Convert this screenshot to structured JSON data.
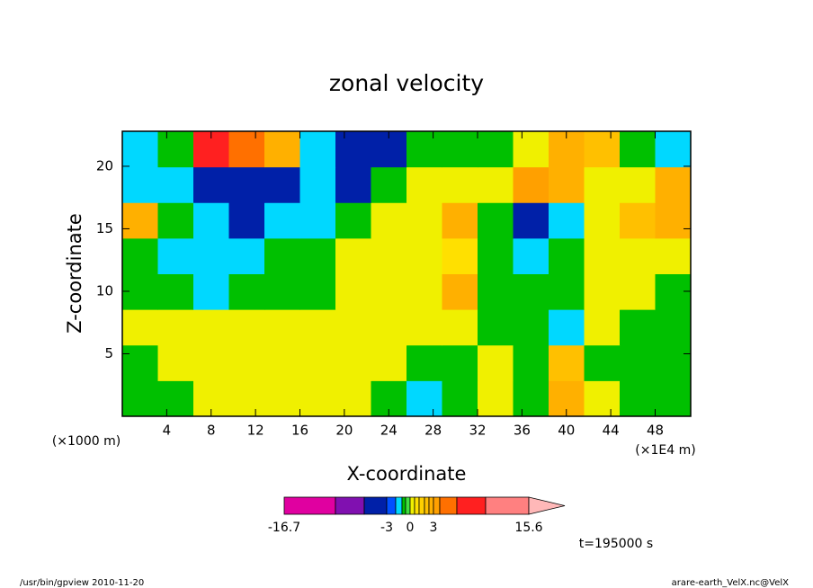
{
  "chart_data": {
    "type": "contourf",
    "title": "zonal velocity",
    "xlabel": "X-coordinate",
    "ylabel": "Z-coordinate",
    "xunit": "(×1000 m)",
    "xunit2": "(×1E4 m)",
    "time_label": "t=195000 s",
    "footer_left": "/usr/bin/gpview  2010-11-20",
    "footer_right": "arare-earth_VelX.nc@VelX",
    "xlim": [
      0,
      51.2
    ],
    "ylim": [
      0,
      22.8
    ],
    "xticks": [
      4,
      8,
      12,
      16,
      20,
      24,
      28,
      32,
      36,
      40,
      44,
      48
    ],
    "yticks": [
      5,
      10,
      15,
      20
    ],
    "xbins": [
      0,
      3.2,
      6.4,
      9.6,
      12.8,
      16,
      19.2,
      22.4,
      25.6,
      28.8,
      32,
      35.2,
      38.4,
      41.6,
      44.8,
      48,
      51.2
    ],
    "ybins": [
      0,
      2.85,
      5.7,
      8.55,
      11.4,
      14.25,
      17.1,
      19.95,
      22.8
    ],
    "z": [
      [
        -0.7,
        -0.7,
        0.3,
        0.3,
        0.3,
        0.3,
        0.3,
        -0.7,
        -1.5,
        -0.7,
        0.3,
        -0.7,
        2,
        0.3,
        -0.7,
        -0.7
      ],
      [
        -0.7,
        0.3,
        0.3,
        0.3,
        0.3,
        0.3,
        0.3,
        0.3,
        -0.7,
        -0.7,
        0.3,
        -0.7,
        1.5,
        -0.7,
        -0.7,
        -0.7
      ],
      [
        0.3,
        0.3,
        0.3,
        0.3,
        0.3,
        0.3,
        0.3,
        0.3,
        0.3,
        0.3,
        -0.7,
        -0.7,
        -2,
        0.3,
        -0.7,
        -0.7
      ],
      [
        -0.7,
        -0.7,
        -1.5,
        -0.7,
        -0.7,
        -0.7,
        0.3,
        0.3,
        0.3,
        2,
        -0.7,
        -0.7,
        -0.7,
        0.3,
        0.3,
        -0.7
      ],
      [
        -0.7,
        -1.5,
        -1.5,
        -1.5,
        -0.7,
        -0.7,
        0.3,
        0.3,
        0.3,
        0.7,
        -0.7,
        -2,
        -0.7,
        0.3,
        0.3,
        0.3
      ],
      [
        2.5,
        -0.7,
        -1.5,
        -4,
        -2,
        -1.5,
        -0.7,
        0.3,
        0.3,
        2,
        -0.7,
        -4,
        -1.5,
        0.3,
        1.5,
        2
      ],
      [
        -1.5,
        -1.5,
        -4,
        -5,
        -5,
        -2,
        -4,
        -1,
        0.3,
        0.3,
        0.3,
        3.5,
        2,
        0.3,
        0.3,
        2
      ],
      [
        -1.5,
        -0.7,
        8,
        5,
        2,
        -1.5,
        -4,
        -5,
        -1,
        -0.7,
        -0.7,
        0.3,
        2.5,
        1.5,
        -0.7,
        -1.5
      ]
    ],
    "levels": [
      -16.7,
      -12,
      -8,
      -3,
      -2,
      -1,
      -0.5,
      0,
      0.5,
      1,
      1.5,
      2,
      3,
      4,
      6,
      9,
      15.6
    ],
    "colors": [
      "#e000a0",
      "#8010b0",
      "#0020a8",
      "#0050ff",
      "#00d8ff",
      "#00c000",
      "#40e040",
      "#f0f000",
      "#ffe000",
      "#ffd000",
      "#ffc000",
      "#ffb000",
      "#ffa000",
      "#ff7000",
      "#ff2020",
      "#ff8080"
    ],
    "over_color": "#ffb8b8",
    "colorbar_ticks": [
      -16.7,
      -3,
      0,
      3,
      15.6
    ]
  }
}
